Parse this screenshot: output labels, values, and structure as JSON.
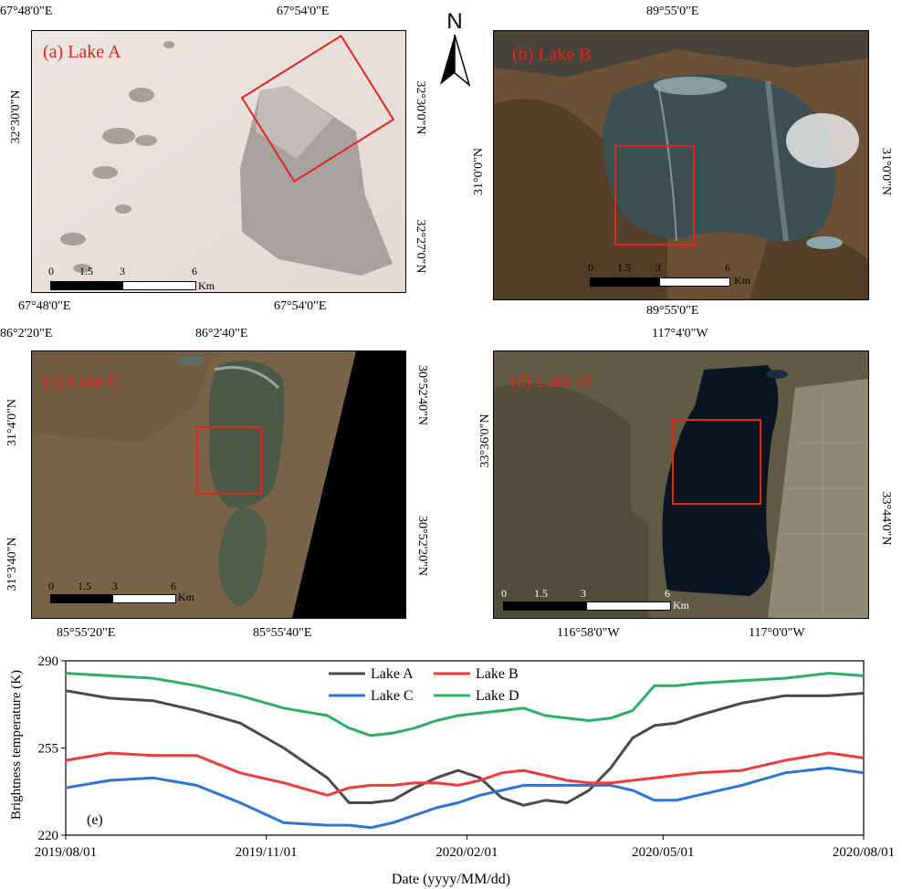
{
  "north_arrow": {
    "label": "N"
  },
  "panels": {
    "a": {
      "label": "(a) Lake A",
      "top_ticks": [
        "67°48'0\"E",
        "67°54'0\"E"
      ],
      "bottom_ticks": [
        "67°48'0\"E",
        "67°54'0\"E"
      ],
      "left_ticks": [
        "32°30'0\"N"
      ],
      "right_ticks": [
        "32°30'0\"N",
        "32°27'0\"N"
      ],
      "scale": {
        "labels": [
          "0",
          "1.5",
          "3",
          "6"
        ],
        "unit": "Km"
      }
    },
    "b": {
      "label": "(b) Lake B",
      "top_ticks": [
        "89°55'0\"E"
      ],
      "bottom_ticks": [
        "89°55'0\"E"
      ],
      "left_ticks": [
        "31°0'0\"N"
      ],
      "right_ticks": [
        "31°0'0\"N"
      ],
      "scale": {
        "labels": [
          "0",
          "1.5",
          "3",
          "6"
        ],
        "unit": "Km"
      }
    },
    "c": {
      "label": "(c) Lake C",
      "top_ticks": [
        "86°2'20\"E",
        "86°2'40\"E"
      ],
      "bottom_ticks": [
        "85°55'20\"E",
        "85°55'40\"E"
      ],
      "left_ticks": [
        "31°4'0\"N",
        "31°3'40\"N"
      ],
      "right_ticks": [
        "30°52'40\"N",
        "30°52'20\"N"
      ],
      "scale": {
        "labels": [
          "0",
          "1.5",
          "3",
          "6"
        ],
        "unit": "Km"
      }
    },
    "d": {
      "label": "(d) Lake D",
      "top_ticks": [
        "117°4'0\"W"
      ],
      "bottom_ticks": [
        "116°58'0\"W",
        "117°0'0\"W"
      ],
      "left_ticks": [
        "33°36'0\"N"
      ],
      "right_ticks": [
        "33°44'0\"N"
      ],
      "scale": {
        "labels": [
          "0",
          "1.5",
          "3",
          "6"
        ],
        "unit": "Km"
      }
    }
  },
  "chart_data": {
    "type": "line",
    "panel_label": "(e)",
    "xlabel": "Date (yyyy/MM/dd)",
    "ylabel": "Brightness temperature (K)",
    "ylim": [
      220,
      290
    ],
    "yticks": [
      220,
      255,
      290
    ],
    "xlim": [
      "2019/08/01",
      "2020/08/01"
    ],
    "xticks": [
      "2019/08/01",
      "2019/11/01",
      "2020/02/01",
      "2020/05/01",
      "2020/08/01"
    ],
    "legend_position": "top-center",
    "series": [
      {
        "name": "Lake A",
        "color": "#4a4a4a",
        "x": [
          "2019/08/01",
          "2019/08/21",
          "2019/09/10",
          "2019/09/30",
          "2019/10/20",
          "2019/11/09",
          "2019/11/29",
          "2019/12/09",
          "2019/12/19",
          "2019/12/29",
          "2020/01/08",
          "2020/01/18",
          "2020/01/28",
          "2020/02/07",
          "2020/02/17",
          "2020/02/27",
          "2020/03/08",
          "2020/03/18",
          "2020/03/28",
          "2020/04/07",
          "2020/04/17",
          "2020/04/27",
          "2020/05/07",
          "2020/05/17",
          "2020/06/06",
          "2020/06/26",
          "2020/07/16",
          "2020/08/01"
        ],
        "y": [
          278,
          275,
          274,
          270,
          265,
          255,
          243,
          233,
          233,
          234,
          239,
          243,
          246,
          243,
          235,
          232,
          234,
          233,
          238,
          247,
          259,
          264,
          265,
          268,
          273,
          276,
          276,
          277
        ]
      },
      {
        "name": "Lake B",
        "color": "#f03c3c",
        "x": [
          "2019/08/01",
          "2019/08/21",
          "2019/09/10",
          "2019/09/30",
          "2019/10/20",
          "2019/11/09",
          "2019/11/29",
          "2019/12/09",
          "2019/12/19",
          "2019/12/29",
          "2020/01/08",
          "2020/01/18",
          "2020/01/28",
          "2020/02/07",
          "2020/02/17",
          "2020/02/27",
          "2020/03/08",
          "2020/03/18",
          "2020/03/28",
          "2020/04/07",
          "2020/04/17",
          "2020/04/27",
          "2020/05/07",
          "2020/05/17",
          "2020/06/06",
          "2020/06/26",
          "2020/07/16",
          "2020/08/01"
        ],
        "y": [
          250,
          253,
          252,
          252,
          245,
          241,
          236,
          239,
          240,
          240,
          241,
          241,
          240,
          242,
          245,
          246,
          244,
          242,
          241,
          241,
          242,
          243,
          244,
          245,
          246,
          250,
          253,
          251
        ]
      },
      {
        "name": "Lake C",
        "color": "#2e74d6",
        "x": [
          "2019/08/01",
          "2019/08/21",
          "2019/09/10",
          "2019/09/30",
          "2019/10/20",
          "2019/11/09",
          "2019/11/29",
          "2019/12/09",
          "2019/12/19",
          "2019/12/29",
          "2020/01/08",
          "2020/01/18",
          "2020/01/28",
          "2020/02/07",
          "2020/02/17",
          "2020/02/27",
          "2020/03/08",
          "2020/03/18",
          "2020/03/28",
          "2020/04/07",
          "2020/04/17",
          "2020/04/27",
          "2020/05/07",
          "2020/05/17",
          "2020/06/06",
          "2020/06/26",
          "2020/07/16",
          "2020/08/01"
        ],
        "y": [
          239,
          242,
          243,
          240,
          233,
          225,
          224,
          224,
          223,
          225,
          228,
          231,
          233,
          236,
          238,
          240,
          240,
          240,
          240,
          240,
          238,
          234,
          234,
          236,
          240,
          245,
          247,
          245
        ]
      },
      {
        "name": "Lake D",
        "color": "#2fae66",
        "x": [
          "2019/08/01",
          "2019/08/21",
          "2019/09/10",
          "2019/09/30",
          "2019/10/20",
          "2019/11/09",
          "2019/11/29",
          "2019/12/09",
          "2019/12/19",
          "2019/12/29",
          "2020/01/08",
          "2020/01/18",
          "2020/01/28",
          "2020/02/07",
          "2020/02/17",
          "2020/02/27",
          "2020/03/08",
          "2020/03/18",
          "2020/03/28",
          "2020/04/07",
          "2020/04/17",
          "2020/04/27",
          "2020/05/07",
          "2020/05/17",
          "2020/06/06",
          "2020/06/26",
          "2020/07/16",
          "2020/08/01"
        ],
        "y": [
          285,
          284,
          283,
          280,
          276,
          271,
          268,
          263,
          260,
          261,
          263,
          266,
          268,
          269,
          270,
          271,
          268,
          267,
          266,
          267,
          270,
          280,
          280,
          281,
          282,
          283,
          285,
          284
        ]
      }
    ]
  }
}
